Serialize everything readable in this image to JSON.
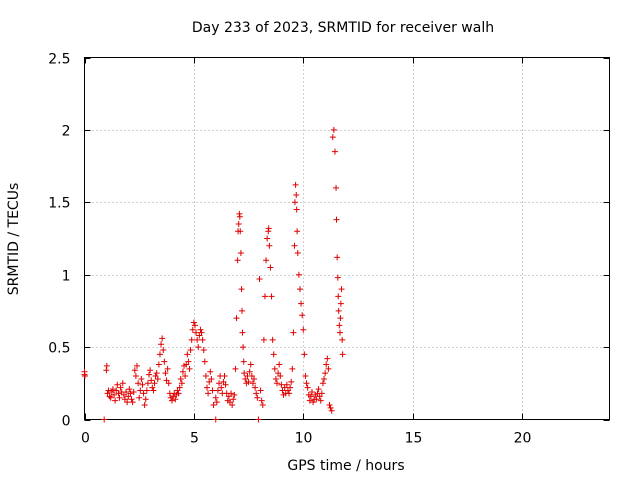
{
  "chart_data": {
    "type": "scatter",
    "title": "Day 233 of 2023, SRMTID for receiver walh",
    "xlabel": "GPS time / hours",
    "ylabel": "SRMTID / TECUs",
    "xlim": [
      0,
      24
    ],
    "ylim": [
      0,
      2.5
    ],
    "xticks": [
      0,
      5,
      10,
      15,
      20
    ],
    "xtick_labels": [
      "0",
      "5",
      "10",
      "15",
      "20"
    ],
    "yticks": [
      0,
      0.5,
      1,
      1.5,
      2,
      2.5
    ],
    "ytick_labels": [
      "0",
      "0.5",
      "1",
      "1.5",
      "2",
      "2.5"
    ],
    "grid": true,
    "marker": "+",
    "color": "#e00000",
    "series": [
      {
        "name": "SRMTID",
        "points": [
          [
            0.0,
            0.31
          ],
          [
            0.0,
            0.33
          ],
          [
            0.02,
            0.3
          ],
          [
            0.9,
            0.0
          ],
          [
            1.0,
            0.34
          ],
          [
            1.02,
            0.37
          ],
          [
            1.05,
            0.18
          ],
          [
            1.1,
            0.2
          ],
          [
            1.15,
            0.16
          ],
          [
            1.2,
            0.15
          ],
          [
            1.25,
            0.19
          ],
          [
            1.3,
            0.21
          ],
          [
            1.35,
            0.17
          ],
          [
            1.4,
            0.13
          ],
          [
            1.45,
            0.2
          ],
          [
            1.5,
            0.24
          ],
          [
            1.55,
            0.18
          ],
          [
            1.6,
            0.15
          ],
          [
            1.65,
            0.22
          ],
          [
            1.7,
            0.19
          ],
          [
            1.75,
            0.25
          ],
          [
            1.8,
            0.17
          ],
          [
            1.85,
            0.14
          ],
          [
            1.9,
            0.19
          ],
          [
            1.95,
            0.12
          ],
          [
            2.0,
            0.16
          ],
          [
            2.05,
            0.21
          ],
          [
            2.1,
            0.18
          ],
          [
            2.15,
            0.14
          ],
          [
            2.2,
            0.12
          ],
          [
            2.25,
            0.19
          ],
          [
            2.3,
            0.34
          ],
          [
            2.35,
            0.3
          ],
          [
            2.4,
            0.37
          ],
          [
            2.45,
            0.25
          ],
          [
            2.5,
            0.15
          ],
          [
            2.55,
            0.2
          ],
          [
            2.6,
            0.28
          ],
          [
            2.65,
            0.24
          ],
          [
            2.7,
            0.18
          ],
          [
            2.75,
            0.1
          ],
          [
            2.8,
            0.14
          ],
          [
            2.85,
            0.2
          ],
          [
            2.9,
            0.25
          ],
          [
            2.95,
            0.31
          ],
          [
            3.0,
            0.34
          ],
          [
            3.05,
            0.27
          ],
          [
            3.1,
            0.22
          ],
          [
            3.15,
            0.2
          ],
          [
            3.2,
            0.25
          ],
          [
            3.25,
            0.3
          ],
          [
            3.3,
            0.32
          ],
          [
            3.35,
            0.28
          ],
          [
            3.4,
            0.38
          ],
          [
            3.45,
            0.45
          ],
          [
            3.5,
            0.52
          ],
          [
            3.55,
            0.56
          ],
          [
            3.6,
            0.48
          ],
          [
            3.65,
            0.4
          ],
          [
            3.7,
            0.32
          ],
          [
            3.75,
            0.27
          ],
          [
            3.8,
            0.35
          ],
          [
            3.85,
            0.25
          ],
          [
            3.9,
            0.18
          ],
          [
            3.95,
            0.15
          ],
          [
            4.0,
            0.13
          ],
          [
            4.05,
            0.16
          ],
          [
            4.1,
            0.18
          ],
          [
            4.15,
            0.14
          ],
          [
            4.2,
            0.17
          ],
          [
            4.25,
            0.2
          ],
          [
            4.3,
            0.18
          ],
          [
            4.35,
            0.22
          ],
          [
            4.4,
            0.28
          ],
          [
            4.45,
            0.25
          ],
          [
            4.5,
            0.33
          ],
          [
            4.55,
            0.37
          ],
          [
            4.6,
            0.3
          ],
          [
            4.65,
            0.38
          ],
          [
            4.7,
            0.45
          ],
          [
            4.75,
            0.4
          ],
          [
            4.8,
            0.35
          ],
          [
            4.85,
            0.48
          ],
          [
            4.9,
            0.55
          ],
          [
            4.95,
            0.62
          ],
          [
            5.0,
            0.67
          ],
          [
            5.05,
            0.65
          ],
          [
            5.1,
            0.6
          ],
          [
            5.15,
            0.55
          ],
          [
            5.2,
            0.5
          ],
          [
            5.25,
            0.58
          ],
          [
            5.3,
            0.62
          ],
          [
            5.35,
            0.6
          ],
          [
            5.4,
            0.55
          ],
          [
            5.45,
            0.48
          ],
          [
            5.5,
            0.4
          ],
          [
            5.55,
            0.3
          ],
          [
            5.6,
            0.22
          ],
          [
            5.65,
            0.18
          ],
          [
            5.7,
            0.26
          ],
          [
            5.75,
            0.33
          ],
          [
            5.8,
            0.28
          ],
          [
            5.85,
            0.2
          ],
          [
            5.9,
            0.1
          ],
          [
            6.0,
            0.0
          ],
          [
            6.0,
            0.15
          ],
          [
            6.05,
            0.12
          ],
          [
            6.1,
            0.2
          ],
          [
            6.15,
            0.25
          ],
          [
            6.2,
            0.3
          ],
          [
            6.25,
            0.22
          ],
          [
            6.3,
            0.18
          ],
          [
            6.35,
            0.26
          ],
          [
            6.4,
            0.3
          ],
          [
            6.45,
            0.24
          ],
          [
            6.5,
            0.18
          ],
          [
            6.55,
            0.13
          ],
          [
            6.6,
            0.16
          ],
          [
            6.65,
            0.12
          ],
          [
            6.7,
            0.18
          ],
          [
            6.75,
            0.1
          ],
          [
            6.8,
            0.14
          ],
          [
            6.85,
            0.17
          ],
          [
            6.9,
            0.35
          ],
          [
            6.95,
            0.7
          ],
          [
            7.0,
            1.1
          ],
          [
            7.02,
            1.3
          ],
          [
            7.05,
            1.35
          ],
          [
            7.08,
            1.42
          ],
          [
            7.1,
            1.4
          ],
          [
            7.12,
            1.3
          ],
          [
            7.15,
            1.15
          ],
          [
            7.18,
            0.9
          ],
          [
            7.2,
            0.75
          ],
          [
            7.22,
            0.6
          ],
          [
            7.25,
            0.5
          ],
          [
            7.28,
            0.4
          ],
          [
            7.3,
            0.32
          ],
          [
            7.35,
            0.28
          ],
          [
            7.4,
            0.25
          ],
          [
            7.45,
            0.3
          ],
          [
            7.5,
            0.26
          ],
          [
            7.55,
            0.33
          ],
          [
            7.6,
            0.38
          ],
          [
            7.65,
            0.3
          ],
          [
            7.7,
            0.25
          ],
          [
            7.75,
            0.28
          ],
          [
            7.8,
            0.22
          ],
          [
            7.85,
            0.18
          ],
          [
            7.9,
            0.15
          ],
          [
            7.95,
            0.0
          ],
          [
            8.0,
            0.97
          ],
          [
            8.05,
            0.2
          ],
          [
            8.1,
            0.13
          ],
          [
            8.15,
            0.1
          ],
          [
            8.2,
            0.55
          ],
          [
            8.25,
            0.85
          ],
          [
            8.3,
            1.1
          ],
          [
            8.35,
            1.25
          ],
          [
            8.4,
            1.3
          ],
          [
            8.42,
            1.32
          ],
          [
            8.45,
            1.2
          ],
          [
            8.5,
            1.05
          ],
          [
            8.55,
            0.85
          ],
          [
            8.6,
            0.55
          ],
          [
            8.65,
            0.45
          ],
          [
            8.7,
            0.35
          ],
          [
            8.75,
            0.28
          ],
          [
            8.8,
            0.25
          ],
          [
            8.85,
            0.32
          ],
          [
            8.9,
            0.38
          ],
          [
            8.95,
            0.3
          ],
          [
            9.0,
            0.24
          ],
          [
            9.05,
            0.2
          ],
          [
            9.1,
            0.17
          ],
          [
            9.15,
            0.22
          ],
          [
            9.2,
            0.18
          ],
          [
            9.25,
            0.24
          ],
          [
            9.3,
            0.2
          ],
          [
            9.35,
            0.18
          ],
          [
            9.4,
            0.22
          ],
          [
            9.45,
            0.26
          ],
          [
            9.5,
            0.35
          ],
          [
            9.55,
            0.6
          ],
          [
            9.6,
            1.2
          ],
          [
            9.62,
            1.5
          ],
          [
            9.65,
            1.62
          ],
          [
            9.68,
            1.55
          ],
          [
            9.7,
            1.45
          ],
          [
            9.72,
            1.3
          ],
          [
            9.75,
            1.15
          ],
          [
            9.8,
            1.0
          ],
          [
            9.85,
            0.9
          ],
          [
            9.9,
            0.8
          ],
          [
            9.95,
            0.72
          ],
          [
            10.0,
            0.62
          ],
          [
            10.05,
            0.45
          ],
          [
            10.1,
            0.3
          ],
          [
            10.15,
            0.25
          ],
          [
            10.2,
            0.22
          ],
          [
            10.25,
            0.17
          ],
          [
            10.3,
            0.13
          ],
          [
            10.35,
            0.16
          ],
          [
            10.4,
            0.19
          ],
          [
            10.45,
            0.12
          ],
          [
            10.5,
            0.14
          ],
          [
            10.55,
            0.17
          ],
          [
            10.6,
            0.14
          ],
          [
            10.65,
            0.18
          ],
          [
            10.7,
            0.21
          ],
          [
            10.75,
            0.16
          ],
          [
            10.8,
            0.13
          ],
          [
            10.85,
            0.18
          ],
          [
            10.9,
            0.25
          ],
          [
            10.95,
            0.28
          ],
          [
            11.0,
            0.32
          ],
          [
            11.05,
            0.38
          ],
          [
            11.1,
            0.42
          ],
          [
            11.15,
            0.35
          ],
          [
            11.2,
            0.1
          ],
          [
            11.25,
            0.08
          ],
          [
            11.3,
            0.06
          ],
          [
            11.35,
            1.95
          ],
          [
            11.4,
            2.0
          ],
          [
            11.45,
            1.85
          ],
          [
            11.5,
            1.6
          ],
          [
            11.52,
            1.38
          ],
          [
            11.55,
            1.12
          ],
          [
            11.58,
            0.98
          ],
          [
            11.6,
            0.85
          ],
          [
            11.62,
            0.75
          ],
          [
            11.65,
            0.65
          ],
          [
            11.68,
            0.6
          ],
          [
            11.7,
            0.7
          ],
          [
            11.72,
            0.8
          ],
          [
            11.75,
            0.9
          ],
          [
            11.78,
            0.55
          ],
          [
            11.8,
            0.45
          ]
        ]
      }
    ]
  }
}
